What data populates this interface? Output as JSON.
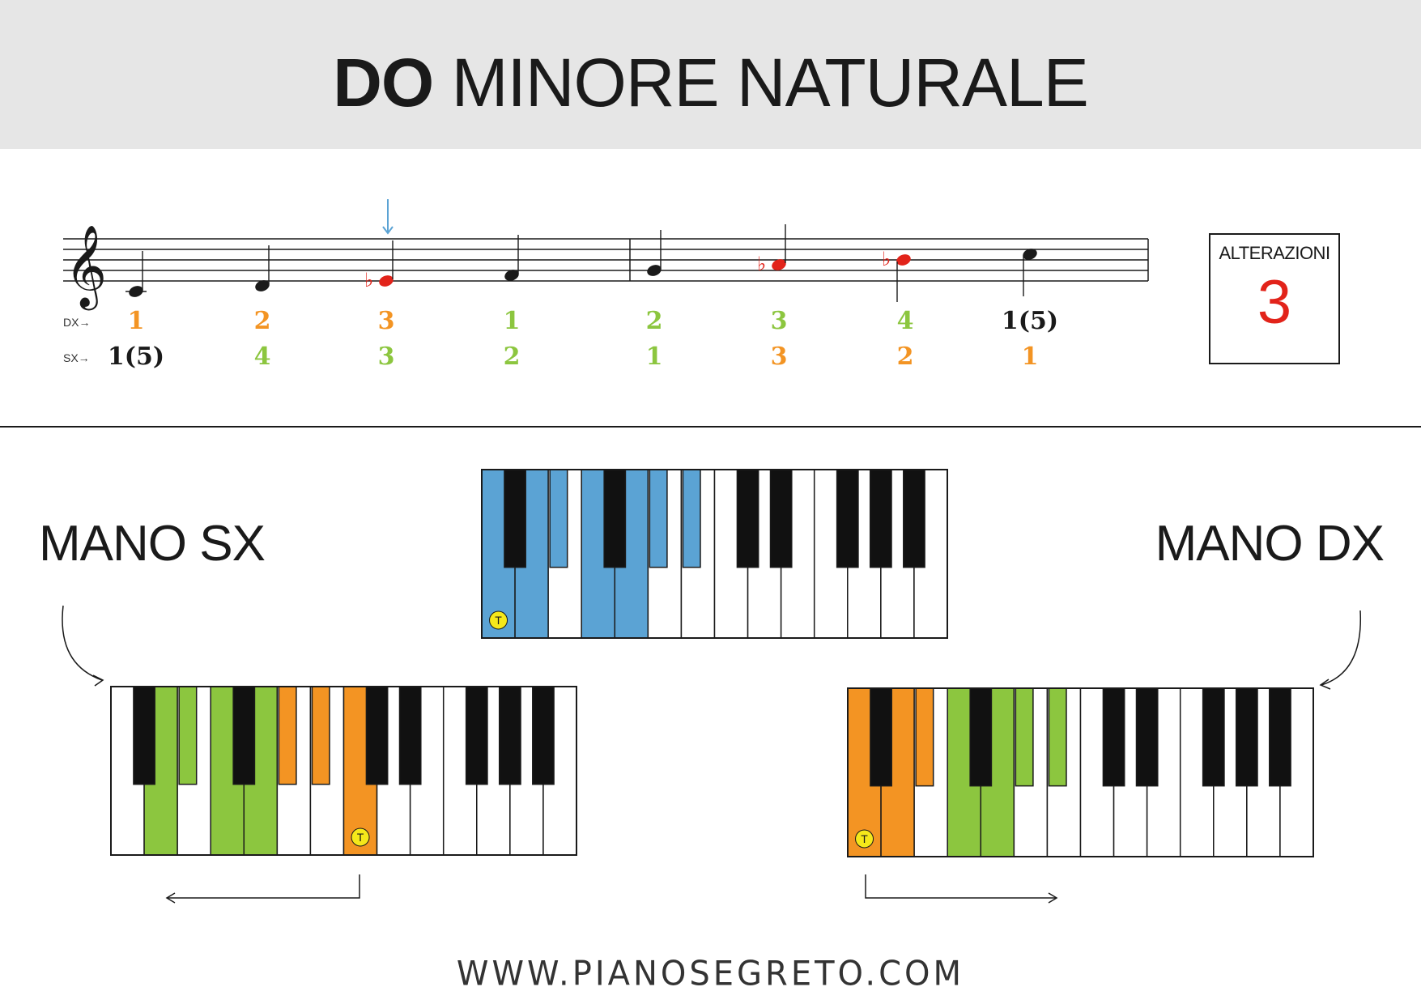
{
  "title": {
    "bold": "DO",
    "rest": "MINORE NATURALE"
  },
  "alterations": {
    "label": "ALTERAZIONI",
    "count": "3"
  },
  "fingering": {
    "dx_label": "DX→",
    "sx_label": "SX→",
    "dx": [
      "1",
      "2",
      "3",
      "1",
      "2",
      "3",
      "4",
      "1(5)"
    ],
    "sx": [
      "1(5)",
      "4",
      "3",
      "2",
      "1",
      "3",
      "2",
      "1"
    ]
  },
  "hands": {
    "left": "MANO SX",
    "right": "MANO DX"
  },
  "keyboard_marker": "T",
  "footer": "WWW.PIANOSEGRETO.COM",
  "colors": {
    "blue": "#5ba3d4",
    "orange": "#f39423",
    "green": "#8cc63f",
    "red": "#e2231a",
    "yellow": "#f5e81a",
    "header_bg": "#e6e6e6",
    "arrow_blue": "#5ba3d4"
  }
}
